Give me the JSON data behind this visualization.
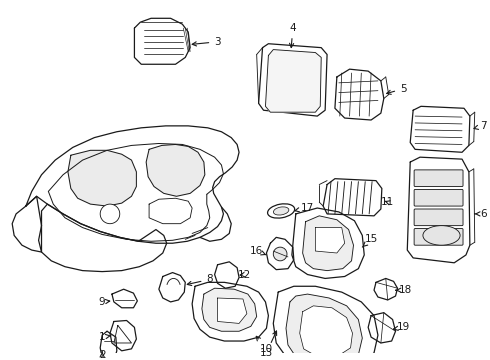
{
  "background_color": "#ffffff",
  "line_color": "#1a1a1a",
  "figsize": [
    4.9,
    3.6
  ],
  "dpi": 100,
  "lw": 0.9
}
